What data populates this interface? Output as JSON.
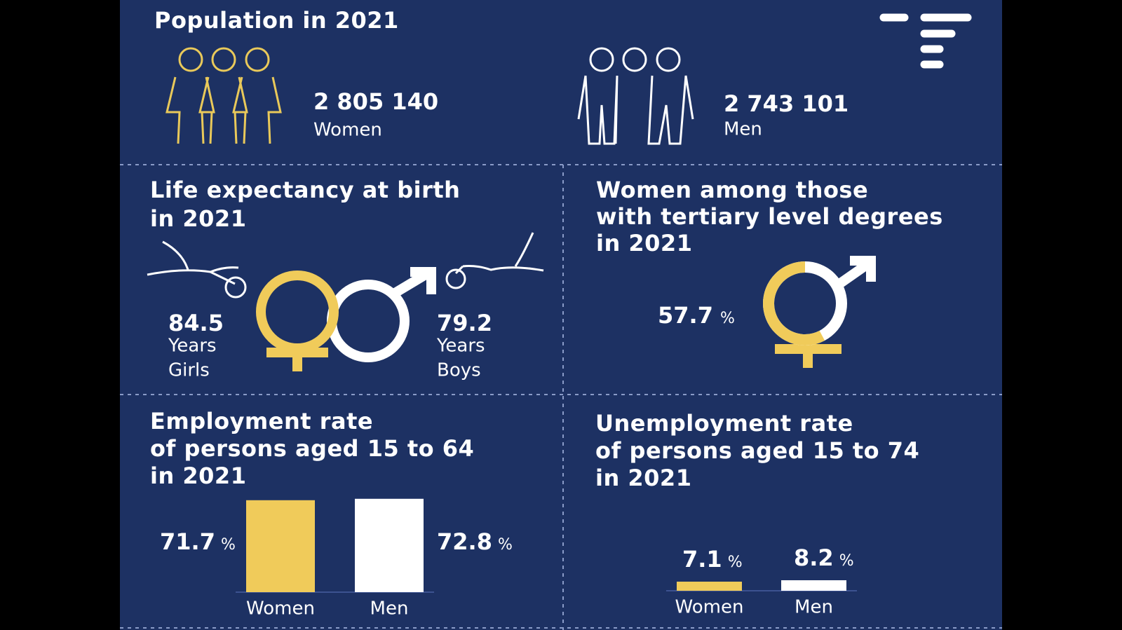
{
  "population": {
    "title": "Population in 2021",
    "women": {
      "value": "2 805 140",
      "label": "Women"
    },
    "men": {
      "value": "2 743 101",
      "label": "Men"
    }
  },
  "life_expectancy": {
    "title": [
      "Life expectancy at birth",
      "in 2021"
    ],
    "girls": {
      "value": 84.5,
      "unit": "Years",
      "label": "Girls"
    },
    "boys": {
      "value": 79.2,
      "unit": "Years",
      "label": "Boys"
    }
  },
  "tertiary": {
    "title": [
      "Women among those",
      "with tertiary level degrees",
      "in 2021"
    ],
    "value": 57.7,
    "unit": "%"
  },
  "employment": {
    "title": [
      "Employment rate",
      "of persons aged 15 to 64",
      "in 2021"
    ],
    "bars": [
      {
        "label": "Women",
        "value": 71.7,
        "unit": "%",
        "color": "#f0cb5a"
      },
      {
        "label": "Men",
        "value": 72.8,
        "unit": "%",
        "color": "#ffffff"
      }
    ]
  },
  "unemployment": {
    "title": [
      "Unemployment rate",
      "of persons aged 15 to 74",
      "in 2021"
    ],
    "bars": [
      {
        "label": "Women",
        "value": 7.1,
        "unit": "%",
        "color": "#f0cb5a"
      },
      {
        "label": "Men",
        "value": 8.2,
        "unit": "%",
        "color": "#ffffff"
      }
    ]
  }
}
